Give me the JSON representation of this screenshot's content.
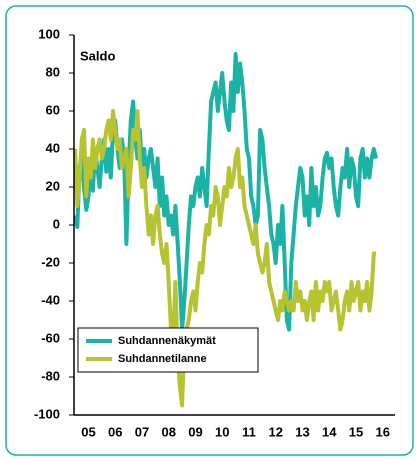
{
  "chart_data": {
    "type": "line",
    "ylabel": "Saldo",
    "categories": [
      null,
      null,
      null,
      null,
      null,
      null,
      "05",
      null,
      null,
      null,
      null,
      null,
      null,
      null,
      null,
      null,
      null,
      null,
      "06",
      null,
      null,
      null,
      null,
      null,
      null,
      null,
      null,
      null,
      null,
      null,
      "07",
      null,
      null,
      null,
      null,
      null,
      null,
      null,
      null,
      null,
      null,
      null,
      "08",
      null,
      null,
      null,
      null,
      null,
      null,
      null,
      null,
      null,
      null,
      null,
      "09",
      null,
      null,
      null,
      null,
      null,
      null,
      null,
      null,
      null,
      null,
      null,
      "10",
      null,
      null,
      null,
      null,
      null,
      null,
      null,
      null,
      null,
      null,
      null,
      "11",
      null,
      null,
      null,
      null,
      null,
      null,
      null,
      null,
      null,
      null,
      null,
      "12",
      null,
      null,
      null,
      null,
      null,
      null,
      null,
      null,
      null,
      null,
      null,
      "13",
      null,
      null,
      null,
      null,
      null,
      null,
      null,
      null,
      null,
      null,
      null,
      "14",
      null,
      null,
      null,
      null,
      null,
      null,
      null,
      null,
      null,
      null,
      null,
      "15",
      null,
      null,
      null,
      null,
      null,
      null,
      null,
      null,
      null,
      null,
      null,
      "16",
      null,
      null,
      null,
      null,
      null
    ],
    "series": [
      {
        "name": "Suhdannenäkymät",
        "color": "#1ab3a6",
        "values": [
          5,
          -1,
          30,
          38,
          20,
          8,
          15,
          35,
          18,
          40,
          30,
          20,
          35,
          45,
          28,
          40,
          25,
          50,
          55,
          40,
          30,
          45,
          35,
          -10,
          30,
          55,
          65,
          45,
          35,
          50,
          30,
          40,
          25,
          35,
          40,
          30,
          20,
          35,
          10,
          25,
          5,
          15,
          0,
          5,
          -5,
          10,
          -10,
          -30,
          -55,
          -40,
          -20,
          0,
          15,
          10,
          20,
          25,
          15,
          30,
          20,
          10,
          40,
          65,
          70,
          75,
          60,
          70,
          80,
          65,
          55,
          50,
          75,
          60,
          90,
          70,
          85,
          75,
          60,
          40,
          35,
          15,
          10,
          0,
          5,
          50,
          45,
          30,
          20,
          10,
          -5,
          -10,
          -20,
          0,
          -10,
          10,
          -20,
          -50,
          -55,
          -20,
          -5,
          10,
          20,
          30,
          25,
          5,
          15,
          0,
          30,
          10,
          20,
          5,
          10,
          25,
          35,
          38,
          30,
          35,
          20,
          10,
          5,
          20,
          30,
          25,
          40,
          20,
          35,
          30,
          15,
          10,
          35,
          40,
          25,
          35,
          25,
          35,
          40,
          35,
          null,
          null,
          null,
          null,
          null,
          null,
          null,
          null
        ]
      },
      {
        "name": "Suhdannetilanne",
        "color": "#b7c330",
        "values": [
          40,
          10,
          25,
          45,
          50,
          15,
          35,
          25,
          45,
          30,
          40,
          45,
          35,
          40,
          50,
          55,
          45,
          60,
          50,
          40,
          45,
          30,
          35,
          40,
          15,
          30,
          50,
          45,
          60,
          35,
          20,
          30,
          10,
          -5,
          5,
          -10,
          5,
          10,
          -5,
          -15,
          -20,
          -10,
          -30,
          -55,
          -60,
          -30,
          -70,
          -85,
          -95,
          -60,
          -55,
          -50,
          -40,
          -35,
          -45,
          -30,
          -20,
          -25,
          -10,
          0,
          -5,
          10,
          5,
          20,
          15,
          0,
          10,
          20,
          15,
          30,
          20,
          25,
          35,
          40,
          20,
          25,
          10,
          5,
          0,
          -5,
          -10,
          0,
          -15,
          -20,
          -25,
          -20,
          -10,
          -30,
          -35,
          -40,
          -45,
          -50,
          -40,
          -45,
          -35,
          -40,
          -45,
          -40,
          -45,
          -30,
          -40,
          -35,
          -45,
          -40,
          -50,
          -40,
          -35,
          -50,
          -30,
          -45,
          -35,
          -40,
          -30,
          -35,
          -30,
          -45,
          -40,
          -35,
          -45,
          -55,
          -50,
          -40,
          -35,
          -45,
          -30,
          -40,
          -35,
          -30,
          -45,
          -35,
          -40,
          -30,
          -45,
          -35,
          -15,
          -15,
          null,
          null,
          null,
          null,
          null,
          null,
          null,
          null
        ]
      }
    ],
    "ylim": [
      -100,
      100
    ],
    "yticks": [
      -100,
      -80,
      -60,
      -40,
      -20,
      0,
      20,
      40,
      60,
      80,
      100
    ],
    "grid": false,
    "legend": "lower left"
  }
}
